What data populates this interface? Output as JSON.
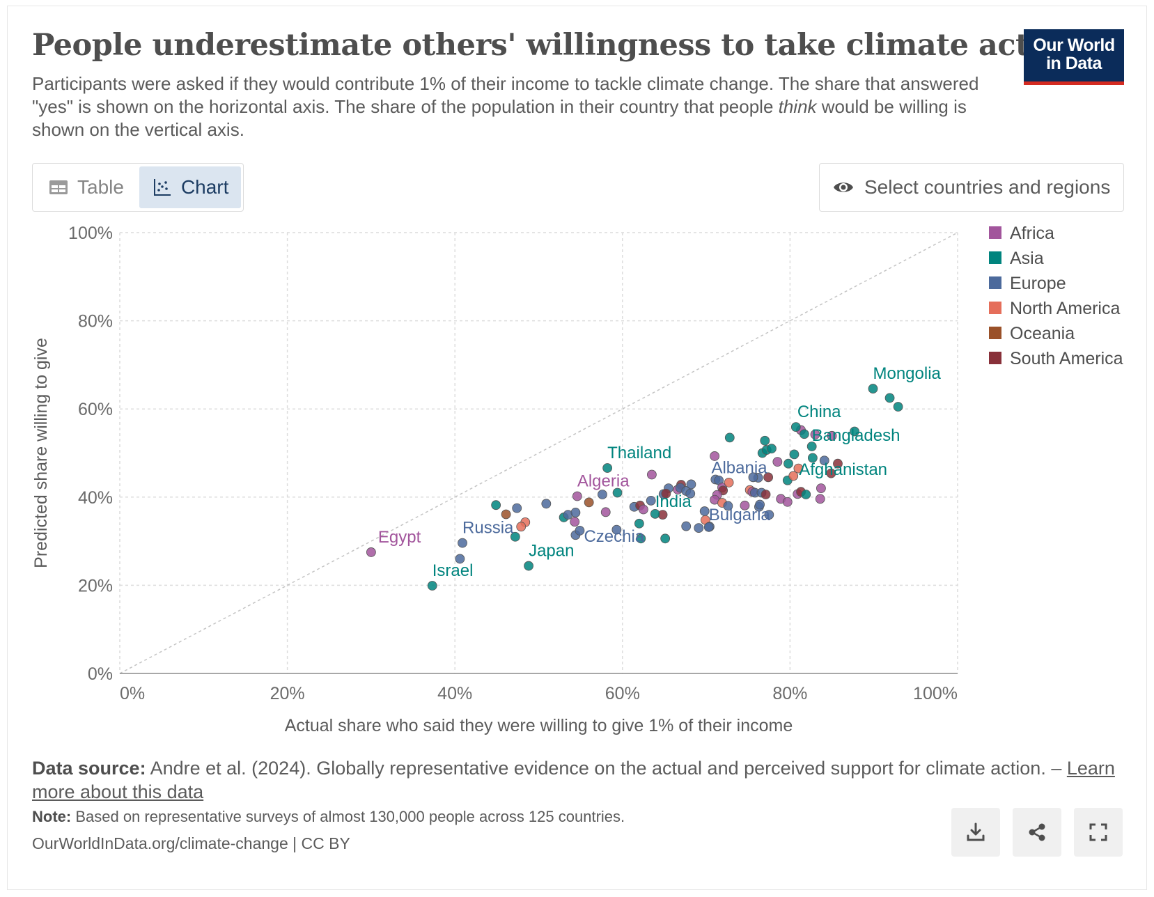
{
  "header": {
    "title": "People underestimate others' willingness to take climate action",
    "subtitle_part1": "Participants were asked if they would contribute 1% of their income to tackle climate change. The share that answered \"yes\" is shown on the horizontal axis. The share of the population in their country that people ",
    "subtitle_emph": "think",
    "subtitle_part2": " would be willing is shown on the vertical axis.",
    "logo_line1": "Our World",
    "logo_line2": "in Data"
  },
  "controls": {
    "tab_table": "Table",
    "tab_chart": "Chart",
    "select_label": "Select countries and regions"
  },
  "colors": {
    "Africa": "#a2559c",
    "Asia": "#00847e",
    "Europe": "#4c6a9c",
    "North America": "#e56e5a",
    "Oceania": "#9a5129",
    "South America": "#883039"
  },
  "chart_data": {
    "type": "scatter",
    "xlabel": "Actual share who said they were willing to give 1% of their income",
    "ylabel": "Predicted share willing to give",
    "xlim": [
      0,
      100
    ],
    "ylim": [
      0,
      100
    ],
    "x_ticks": [
      "0%",
      "20%",
      "40%",
      "60%",
      "80%",
      "100%"
    ],
    "y_ticks": [
      "0%",
      "20%",
      "40%",
      "60%",
      "80%",
      "100%"
    ],
    "grid": true,
    "reference_line": "y = x",
    "legend_position": "right",
    "legend": [
      "Africa",
      "Asia",
      "Europe",
      "North America",
      "Oceania",
      "South America"
    ],
    "labeled_points": [
      {
        "name": "Egypt",
        "region": "Africa",
        "x": 30.0,
        "y": 27.5
      },
      {
        "name": "Israel",
        "region": "Asia",
        "x": 37.3,
        "y": 19.9
      },
      {
        "name": "Russia",
        "region": "Europe",
        "x": 40.9,
        "y": 29.6
      },
      {
        "name": "Japan",
        "region": "Asia",
        "x": 48.8,
        "y": 24.4
      },
      {
        "name": "Algeria",
        "region": "Africa",
        "x": 54.6,
        "y": 40.2
      },
      {
        "name": "Thailand",
        "region": "Asia",
        "x": 58.2,
        "y": 46.6
      },
      {
        "name": "Czechia",
        "region": "Europe",
        "x": 54.9,
        "y": 32.4
      },
      {
        "name": "India",
        "region": "Asia",
        "x": 63.9,
        "y": 36.2
      },
      {
        "name": "Bulgaria",
        "region": "Europe",
        "x": 70.3,
        "y": 33.2
      },
      {
        "name": "Albania",
        "region": "Europe",
        "x": 75.6,
        "y": 44.5
      },
      {
        "name": "Afghanistan",
        "region": "Asia",
        "x": 81.9,
        "y": 40.6
      },
      {
        "name": "Bangladesh",
        "region": "Asia",
        "x": 82.6,
        "y": 51.5
      },
      {
        "name": "China",
        "region": "Asia",
        "x": 80.7,
        "y": 55.9
      },
      {
        "name": "Mongolia",
        "region": "Asia",
        "x": 89.9,
        "y": 64.6
      }
    ],
    "points": [
      {
        "region": "Asia",
        "x": 44.9,
        "y": 38.2
      },
      {
        "region": "Oceania",
        "x": 46.1,
        "y": 36.1
      },
      {
        "region": "Europe",
        "x": 47.4,
        "y": 37.5
      },
      {
        "region": "North America",
        "x": 48.4,
        "y": 34.3
      },
      {
        "region": "North America",
        "x": 47.9,
        "y": 33.3
      },
      {
        "region": "Asia",
        "x": 47.2,
        "y": 31.0
      },
      {
        "region": "Europe",
        "x": 40.6,
        "y": 26.0
      },
      {
        "region": "Europe",
        "x": 50.9,
        "y": 38.5
      },
      {
        "region": "Asia",
        "x": 53.0,
        "y": 35.4
      },
      {
        "region": "Europe",
        "x": 53.5,
        "y": 36.0
      },
      {
        "region": "Europe",
        "x": 54.4,
        "y": 36.5
      },
      {
        "region": "Africa",
        "x": 54.3,
        "y": 34.4
      },
      {
        "region": "Europe",
        "x": 54.4,
        "y": 31.4
      },
      {
        "region": "Oceania",
        "x": 56.0,
        "y": 38.8
      },
      {
        "region": "Africa",
        "x": 58.0,
        "y": 36.6
      },
      {
        "region": "Asia",
        "x": 59.4,
        "y": 41.0
      },
      {
        "region": "Europe",
        "x": 59.3,
        "y": 32.6
      },
      {
        "region": "Europe",
        "x": 57.6,
        "y": 40.6
      },
      {
        "region": "Europe",
        "x": 61.4,
        "y": 37.8
      },
      {
        "region": "South America",
        "x": 62.1,
        "y": 38.1
      },
      {
        "region": "Africa",
        "x": 62.5,
        "y": 37.2
      },
      {
        "region": "Asia",
        "x": 62.0,
        "y": 34.0
      },
      {
        "region": "Asia",
        "x": 62.2,
        "y": 30.6
      },
      {
        "region": "Africa",
        "x": 63.5,
        "y": 45.1
      },
      {
        "region": "Europe",
        "x": 63.4,
        "y": 39.2
      },
      {
        "region": "South America",
        "x": 64.8,
        "y": 36.0
      },
      {
        "region": "Asia",
        "x": 65.1,
        "y": 30.6
      },
      {
        "region": "Europe",
        "x": 65.5,
        "y": 42.0
      },
      {
        "region": "Europe",
        "x": 64.9,
        "y": 40.7
      },
      {
        "region": "South America",
        "x": 65.2,
        "y": 40.8
      },
      {
        "region": "Africa",
        "x": 66.6,
        "y": 41.7
      },
      {
        "region": "South America",
        "x": 67.0,
        "y": 42.8
      },
      {
        "region": "Europe",
        "x": 66.9,
        "y": 42.1
      },
      {
        "region": "Europe",
        "x": 67.6,
        "y": 41.4
      },
      {
        "region": "Europe",
        "x": 68.2,
        "y": 42.9
      },
      {
        "region": "Europe",
        "x": 68.1,
        "y": 40.8
      },
      {
        "region": "Europe",
        "x": 67.6,
        "y": 33.4
      },
      {
        "region": "Europe",
        "x": 69.1,
        "y": 33.0
      },
      {
        "region": "Europe",
        "x": 69.8,
        "y": 36.8
      },
      {
        "region": "North America",
        "x": 69.9,
        "y": 34.8
      },
      {
        "region": "Europe",
        "x": 70.4,
        "y": 33.3
      },
      {
        "region": "Africa",
        "x": 71.0,
        "y": 49.3
      },
      {
        "region": "Europe",
        "x": 71.1,
        "y": 44.0
      },
      {
        "region": "Europe",
        "x": 71.5,
        "y": 43.8
      },
      {
        "region": "Africa",
        "x": 71.9,
        "y": 42.2
      },
      {
        "region": "South America",
        "x": 72.0,
        "y": 41.5
      },
      {
        "region": "Africa",
        "x": 71.3,
        "y": 40.5
      },
      {
        "region": "Africa",
        "x": 71.0,
        "y": 39.4
      },
      {
        "region": "North America",
        "x": 71.9,
        "y": 38.7
      },
      {
        "region": "Europe",
        "x": 72.6,
        "y": 38.0
      },
      {
        "region": "North America",
        "x": 72.7,
        "y": 43.3
      },
      {
        "region": "Asia",
        "x": 72.8,
        "y": 53.5
      },
      {
        "region": "Africa",
        "x": 74.6,
        "y": 38.1
      },
      {
        "region": "North America",
        "x": 75.2,
        "y": 41.6
      },
      {
        "region": "Africa",
        "x": 75.5,
        "y": 41.2
      },
      {
        "region": "Europe",
        "x": 75.8,
        "y": 41.0
      },
      {
        "region": "Europe",
        "x": 76.2,
        "y": 44.4
      },
      {
        "region": "Europe",
        "x": 76.3,
        "y": 37.8
      },
      {
        "region": "Europe",
        "x": 76.6,
        "y": 41.0
      },
      {
        "region": "Europe",
        "x": 76.4,
        "y": 38.3
      },
      {
        "region": "South America",
        "x": 77.1,
        "y": 40.6
      },
      {
        "region": "South America",
        "x": 77.4,
        "y": 44.5
      },
      {
        "region": "Europe",
        "x": 77.5,
        "y": 36.0
      },
      {
        "region": "Asia",
        "x": 76.7,
        "y": 50.0
      },
      {
        "region": "Asia",
        "x": 77.2,
        "y": 50.7
      },
      {
        "region": "Asia",
        "x": 77.8,
        "y": 51.0
      },
      {
        "region": "Asia",
        "x": 77.0,
        "y": 52.8
      },
      {
        "region": "Africa",
        "x": 78.5,
        "y": 48.0
      },
      {
        "region": "Africa",
        "x": 78.9,
        "y": 39.6
      },
      {
        "region": "Africa",
        "x": 79.7,
        "y": 38.9
      },
      {
        "region": "Asia",
        "x": 79.8,
        "y": 47.6
      },
      {
        "region": "Asia",
        "x": 79.7,
        "y": 43.8
      },
      {
        "region": "Asia",
        "x": 80.5,
        "y": 49.7
      },
      {
        "region": "North America",
        "x": 80.4,
        "y": 44.8
      },
      {
        "region": "North America",
        "x": 81.0,
        "y": 46.5
      },
      {
        "region": "Africa",
        "x": 80.9,
        "y": 40.7
      },
      {
        "region": "South America",
        "x": 81.3,
        "y": 41.2
      },
      {
        "region": "Africa",
        "x": 81.3,
        "y": 55.2
      },
      {
        "region": "Asia",
        "x": 81.7,
        "y": 54.3
      },
      {
        "region": "Asia",
        "x": 82.7,
        "y": 48.9
      },
      {
        "region": "Africa",
        "x": 83.0,
        "y": 54.2
      },
      {
        "region": "Europe",
        "x": 84.1,
        "y": 48.3
      },
      {
        "region": "Africa",
        "x": 83.6,
        "y": 39.6
      },
      {
        "region": "South America",
        "x": 84.9,
        "y": 45.4
      },
      {
        "region": "Africa",
        "x": 85.0,
        "y": 53.9
      },
      {
        "region": "South America",
        "x": 85.7,
        "y": 47.6
      },
      {
        "region": "Asia",
        "x": 87.7,
        "y": 54.9
      },
      {
        "region": "Asia",
        "x": 91.9,
        "y": 62.5
      },
      {
        "region": "Asia",
        "x": 92.9,
        "y": 60.5
      },
      {
        "region": "Africa",
        "x": 83.7,
        "y": 42.0
      }
    ]
  },
  "footer": {
    "source_label": "Data source:",
    "source_text": " Andre et al. (2024). Globally representative evidence on the actual and perceived support for climate action. – ",
    "learn_more": "Learn more about this data",
    "note_label": "Note:",
    "note_text": " Based on representative surveys of almost 130,000 people across 125 countries.",
    "url": "OurWorldInData.org/climate-change | CC BY"
  },
  "icons": {
    "download": "download-icon",
    "share": "share-icon",
    "fullscreen": "fullscreen-icon",
    "table": "table-icon",
    "chart": "scatter-chart-icon",
    "eye": "eye-icon"
  }
}
